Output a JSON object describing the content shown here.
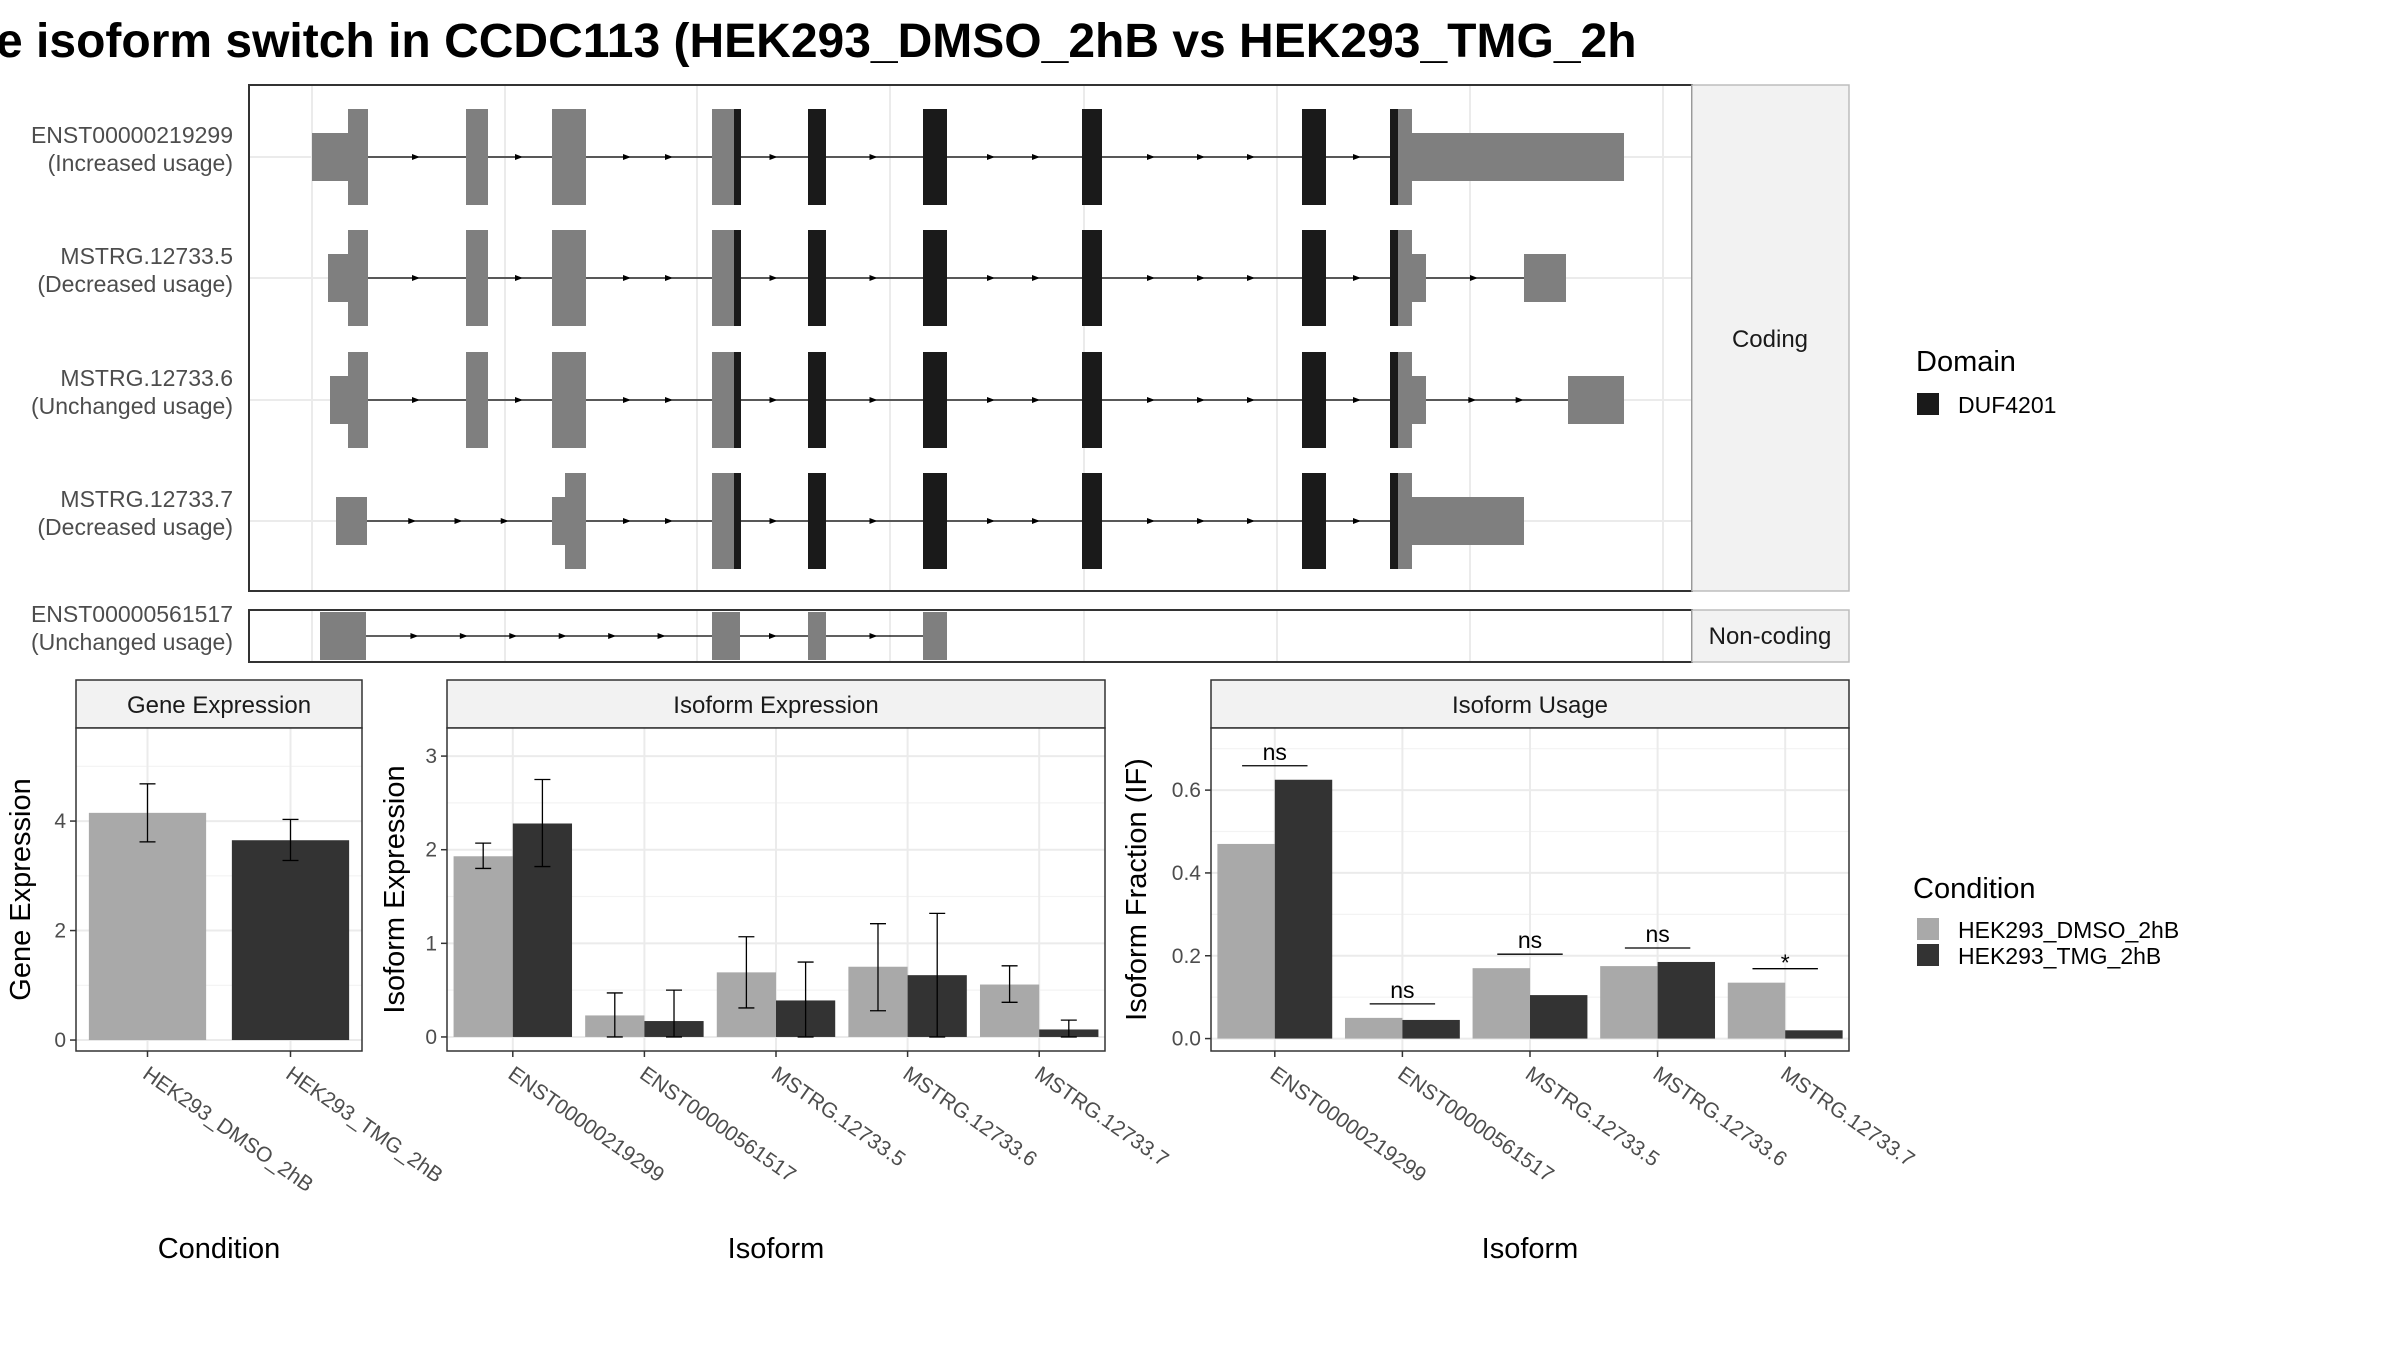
{
  "title": "e isoform switch in CCDC113 (HEK293_DMSO_2hB vs HEK293_TMG_2h",
  "colors": {
    "exon": "#7f7f7f",
    "domain": "#1a1a1a",
    "cond_dmso": "#a9a9a9",
    "cond_tmg": "#333333",
    "grid": "#ebebeb",
    "strip": "#f2f2f2"
  },
  "structure": {
    "coding_label": "Coding",
    "noncoding_label": "Non-coding",
    "transcripts": [
      {
        "id": "ENST00000219299",
        "usage": "(Increased usage)",
        "group": "coding"
      },
      {
        "id": "MSTRG.12733.5",
        "usage": "(Decreased usage)",
        "group": "coding"
      },
      {
        "id": "MSTRG.12733.6",
        "usage": "(Unchanged usage)",
        "group": "coding"
      },
      {
        "id": "MSTRG.12733.7",
        "usage": "(Decreased usage)",
        "group": "coding"
      },
      {
        "id": "ENST00000561517",
        "usage": "(Unchanged usage)",
        "group": "noncoding"
      }
    ]
  },
  "legend_domain": {
    "title": "Domain",
    "items": [
      "DUF4201"
    ]
  },
  "legend_condition": {
    "title": "Condition",
    "items": [
      "HEK293_DMSO_2hB",
      "HEK293_TMG_2hB"
    ]
  },
  "chart_data": [
    {
      "type": "bar",
      "title": "Gene Expression",
      "xlabel": "Condition",
      "ylabel": "Gene Expression",
      "categories": [
        "HEK293_DMSO_2hB",
        "HEK293_TMG_2hB"
      ],
      "values": [
        4.15,
        3.65
      ],
      "error_low": [
        3.62,
        3.28
      ],
      "error_high": [
        4.68,
        4.03
      ],
      "yticks": [
        0,
        2,
        4
      ],
      "ylim": [
        -0.2,
        5.7
      ]
    },
    {
      "type": "bar",
      "title": "Isoform Expression",
      "xlabel": "Isoform",
      "ylabel": "Isoform Expression",
      "categories": [
        "ENST00000219299",
        "ENST00000561517",
        "MSTRG.12733.5",
        "MSTRG.12733.6",
        "MSTRG.12733.7"
      ],
      "series": [
        {
          "name": "HEK293_DMSO_2hB",
          "values": [
            1.93,
            0.23,
            0.69,
            0.75,
            0.56
          ],
          "error_low": [
            1.8,
            0.0,
            0.31,
            0.28,
            0.37
          ],
          "error_high": [
            2.07,
            0.47,
            1.07,
            1.21,
            0.76
          ]
        },
        {
          "name": "HEK293_TMG_2hB",
          "values": [
            2.28,
            0.17,
            0.39,
            0.66,
            0.08
          ],
          "error_low": [
            1.82,
            0.0,
            0.0,
            0.0,
            0.0
          ],
          "error_high": [
            2.75,
            0.5,
            0.8,
            1.32,
            0.18
          ]
        }
      ],
      "yticks": [
        0,
        1,
        2,
        3
      ],
      "ylim": [
        -0.15,
        3.3
      ]
    },
    {
      "type": "bar",
      "title": "Isoform Usage",
      "xlabel": "Isoform",
      "ylabel": "Isoform Fraction (IF)",
      "categories": [
        "ENST00000219299",
        "ENST00000561517",
        "MSTRG.12733.5",
        "MSTRG.12733.6",
        "MSTRG.12733.7"
      ],
      "series": [
        {
          "name": "HEK293_DMSO_2hB",
          "values": [
            0.47,
            0.05,
            0.17,
            0.175,
            0.135
          ]
        },
        {
          "name": "HEK293_TMG_2hB",
          "values": [
            0.625,
            0.045,
            0.105,
            0.185,
            0.02
          ]
        }
      ],
      "significance": [
        "ns",
        "ns",
        "ns",
        "ns",
        "*"
      ],
      "yticks": [
        0.0,
        0.2,
        0.4,
        0.6
      ],
      "ylim": [
        -0.03,
        0.75
      ]
    }
  ]
}
